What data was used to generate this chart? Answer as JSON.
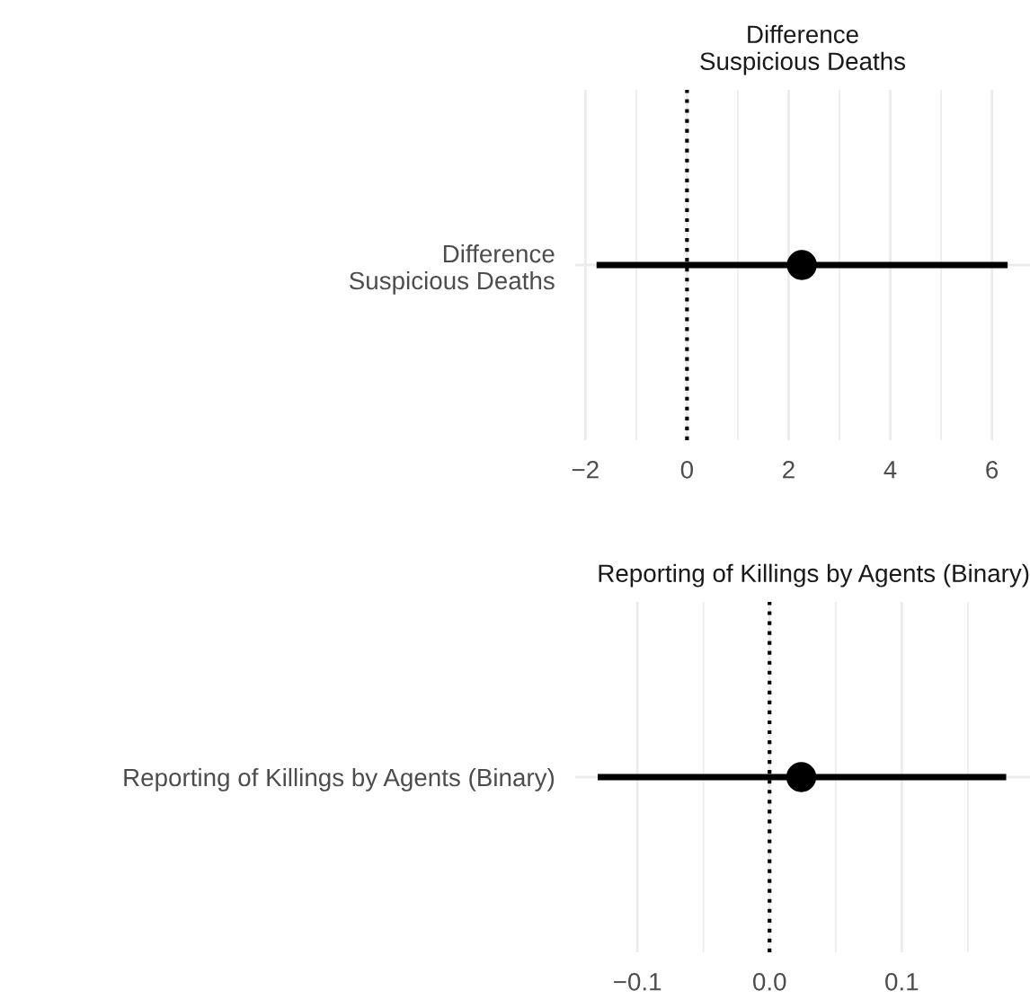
{
  "chart_data": [
    {
      "type": "scatter",
      "orientation": "horizontal",
      "title": "Difference\nSuspicious Deaths",
      "categories": [
        "Difference\nSuspicious Deaths"
      ],
      "series": [
        {
          "color": "#000000",
          "values": [
            2.26
          ],
          "errors": [
            [
              -1.78,
              6.31
            ]
          ]
        }
      ],
      "xlim": [
        -2.2,
        6.75
      ],
      "xticks": [
        {
          "value": -2,
          "label": "−2"
        },
        {
          "value": -1,
          "label": null
        },
        0,
        {
          "value": 1,
          "label": null
        },
        2,
        {
          "value": 3,
          "label": null
        },
        4,
        {
          "value": 5,
          "label": null
        },
        6
      ],
      "ref_lines": [
        {
          "axis": "x",
          "value": 0,
          "line_style": "dotted",
          "color": "#000000"
        }
      ],
      "grid": true,
      "marker": "circle"
    },
    {
      "type": "scatter",
      "orientation": "horizontal",
      "title": "Reporting of Killings by Agents (Binary)",
      "categories": [
        "Reporting of Killings by Agents (Binary)"
      ],
      "series": [
        {
          "color": "#000000",
          "values": [
            0.024
          ],
          "errors": [
            [
              -0.13,
              0.179
            ]
          ]
        }
      ],
      "xlim": [
        -0.147,
        0.197
      ],
      "xticks": [
        {
          "value": -0.1,
          "label": "−0.1"
        },
        {
          "value": -0.05,
          "label": null
        },
        "0.0",
        {
          "value": 0.05,
          "label": null
        },
        0.1,
        {
          "value": 0.15,
          "label": null
        }
      ],
      "ref_lines": [
        {
          "axis": "x",
          "value": 0,
          "line_style": "dotted",
          "color": "#000000"
        }
      ],
      "grid": true,
      "marker": "circle"
    }
  ]
}
